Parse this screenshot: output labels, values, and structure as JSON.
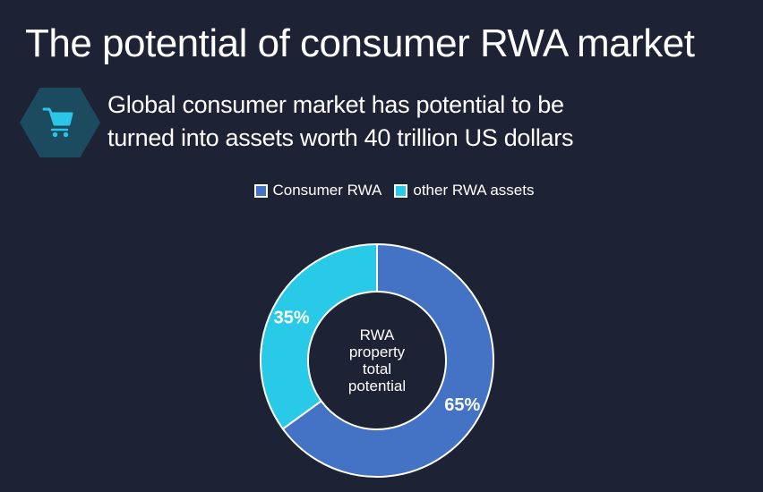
{
  "page": {
    "title": "The potential of consumer RWA market",
    "subtitle": "Global consumer market has potential to be\nturned into assets worth 40 trillion US dollars"
  },
  "icon": {
    "name": "shopping-cart",
    "hexagon_fill": "#1C4A5F",
    "cart_color": "#2BC5E8"
  },
  "colors": {
    "background": "#1D2234",
    "text": "#FFFFFF",
    "slice_border": "#FFFFFF"
  },
  "chart_data": {
    "type": "pie",
    "subtype": "donut",
    "title": "",
    "labels": [
      "Consumer RWA",
      "other RWA assets"
    ],
    "values": [
      65,
      35
    ],
    "value_labels": [
      "65%",
      "35%"
    ],
    "colors": [
      "#4472C4",
      "#29C9E8"
    ],
    "center_label": "RWA\nproperty\ntotal\npotential",
    "legend_position": "top",
    "start_angle_deg": 0,
    "direction": "clockwise",
    "donut_hole_ratio": 0.59,
    "geometry": {
      "outer_radius": 130,
      "inner_radius": 77,
      "label_radius": 107
    }
  }
}
